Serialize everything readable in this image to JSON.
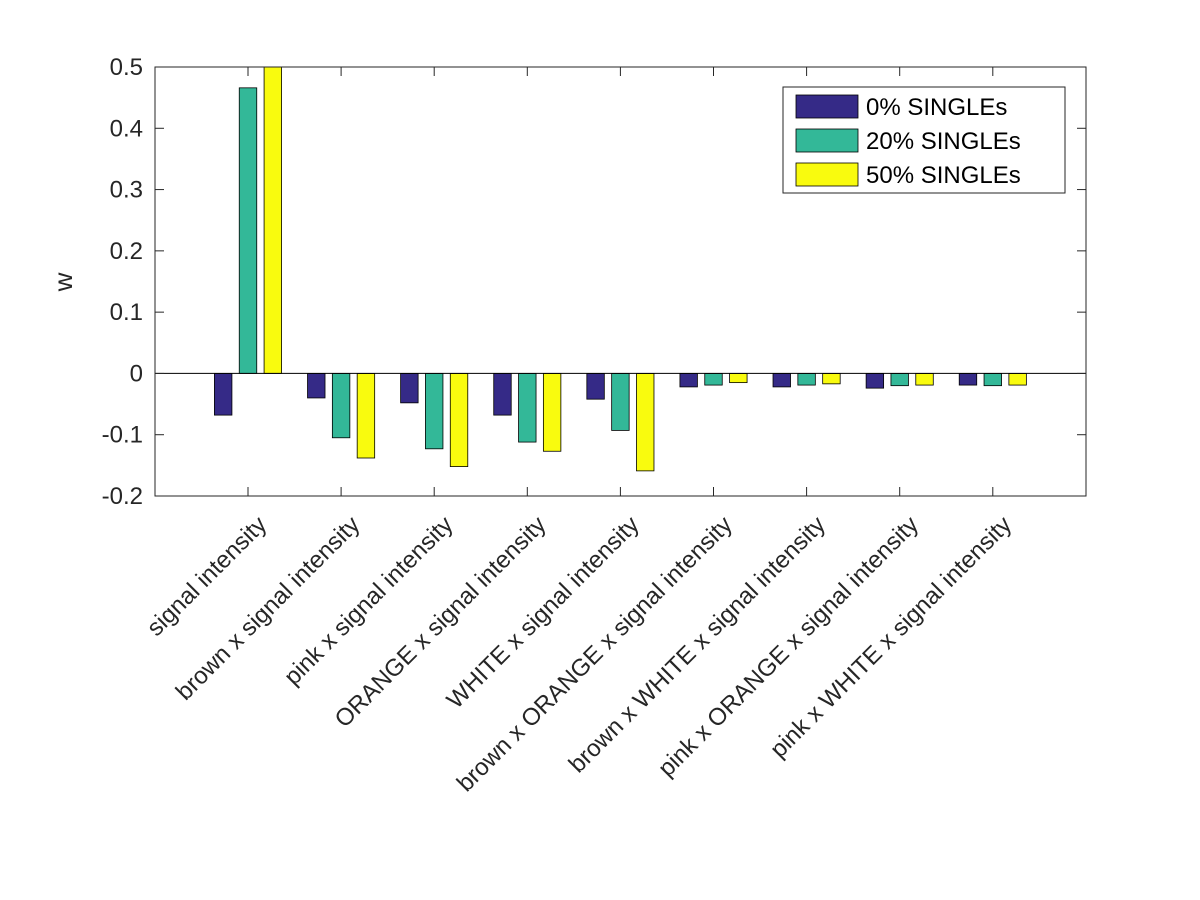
{
  "chart_data": {
    "type": "bar",
    "title": "",
    "xlabel": "",
    "ylabel": "w",
    "ylim": [
      -0.2,
      0.5
    ],
    "yticks": [
      -0.2,
      -0.1,
      0,
      0.1,
      0.2,
      0.3,
      0.4,
      0.5
    ],
    "ytick_labels": [
      "-0.2",
      "-0.1",
      "0",
      "0.1",
      "0.2",
      "0.3",
      "0.4",
      "0.5"
    ],
    "grid": false,
    "legend_position": "top-right",
    "categories": [
      "signal intensity",
      "brown x signal intensity",
      "pink x signal intensity",
      "ORANGE x signal intensity",
      "WHITE x signal intensity",
      "brown x ORANGE x signal intensity",
      "brown x WHITE x signal intensity",
      "pink x ORANGE x signal intensity",
      "pink x WHITE x signal intensity"
    ],
    "series": [
      {
        "name": "0% SINGLEs",
        "color": "#352a87",
        "values": [
          -0.068,
          -0.04,
          -0.048,
          -0.068,
          -0.042,
          -0.022,
          -0.022,
          -0.024,
          -0.019
        ]
      },
      {
        "name": "20% SINGLEs",
        "color": "#33b898",
        "values": [
          0.466,
          -0.105,
          -0.123,
          -0.112,
          -0.093,
          -0.019,
          -0.019,
          -0.02,
          -0.02
        ]
      },
      {
        "name": "50% SINGLEs",
        "color": "#f9fb0e",
        "values": [
          0.5,
          -0.138,
          -0.152,
          -0.127,
          -0.159,
          -0.015,
          -0.017,
          -0.019,
          -0.019
        ]
      }
    ]
  }
}
